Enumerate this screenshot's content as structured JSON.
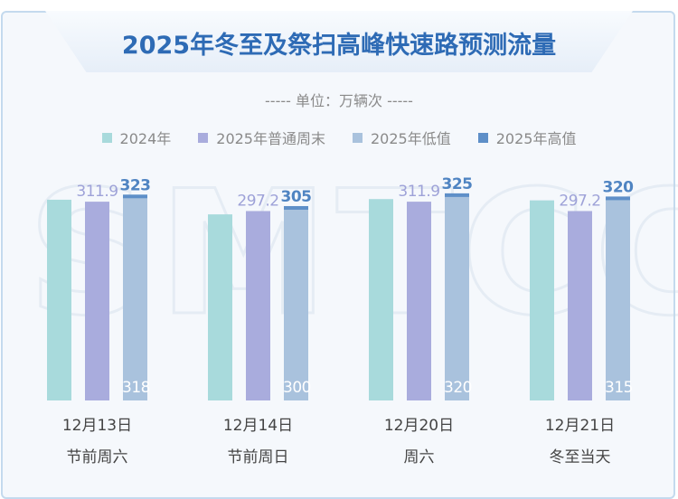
{
  "title": "2025年冬至及祭扫高峰快速路预测流量",
  "unit": "----- 单位：万辆次 -----",
  "watermark": "SMTCC",
  "legend": [
    {
      "label": "2024年",
      "color": "#a8dadc"
    },
    {
      "label": "2025年普通周末",
      "color": "#a9acdd"
    },
    {
      "label": "2025年低值",
      "color": "#a9c2dd"
    },
    {
      "label": "2025年高值",
      "color": "#5e8fc8"
    }
  ],
  "chart_data": {
    "type": "bar",
    "title": "2025年冬至及祭扫高峰快速路预测流量",
    "unit": "万辆次",
    "categories": [
      {
        "date": "12月13日",
        "day": "节前周六"
      },
      {
        "date": "12月14日",
        "day": "节前周日"
      },
      {
        "date": "12月20日",
        "day": "周六"
      },
      {
        "date": "12月21日",
        "day": "冬至当天"
      }
    ],
    "series": [
      {
        "name": "2024年",
        "values": [
          315,
          292,
          316,
          314
        ],
        "labeled": false
      },
      {
        "name": "2025年普通周末",
        "values": [
          311.9,
          297.2,
          311.9,
          297.2
        ],
        "labels": [
          "311.9",
          "297.2",
          "311.9",
          "297.2"
        ]
      },
      {
        "name": "2025年低值",
        "values": [
          318,
          300,
          320,
          315
        ],
        "labels": [
          "318",
          "300",
          "320",
          "315"
        ]
      },
      {
        "name": "2025年高值",
        "values": [
          323,
          305,
          325,
          320
        ],
        "labels": [
          "323",
          "305",
          "325",
          "320"
        ]
      }
    ],
    "ylim": [
      0,
      330
    ],
    "grid": false,
    "legend_position": "top"
  }
}
